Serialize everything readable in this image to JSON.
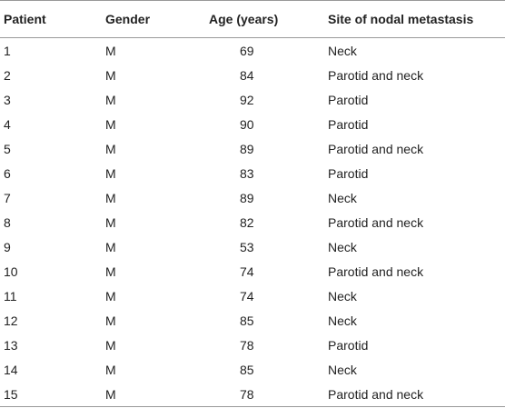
{
  "table": {
    "headers": [
      "Patient",
      "Gender",
      "Age (years)",
      "Site of nodal metastasis"
    ],
    "rows": [
      [
        "1",
        "M",
        "69",
        "Neck"
      ],
      [
        "2",
        "M",
        "84",
        "Parotid and neck"
      ],
      [
        "3",
        "M",
        "92",
        "Parotid"
      ],
      [
        "4",
        "M",
        "90",
        "Parotid"
      ],
      [
        "5",
        "M",
        "89",
        "Parotid and neck"
      ],
      [
        "6",
        "M",
        "83",
        "Parotid"
      ],
      [
        "7",
        "M",
        "89",
        "Neck"
      ],
      [
        "8",
        "M",
        "82",
        "Parotid and neck"
      ],
      [
        "9",
        "M",
        "53",
        "Neck"
      ],
      [
        "10",
        "M",
        "74",
        "Parotid and neck"
      ],
      [
        "11",
        "M",
        "74",
        "Neck"
      ],
      [
        "12",
        "M",
        "85",
        "Neck"
      ],
      [
        "13",
        "M",
        "78",
        "Parotid"
      ],
      [
        "14",
        "M",
        "85",
        "Neck"
      ],
      [
        "15",
        "M",
        "78",
        "Parotid and neck"
      ]
    ]
  }
}
